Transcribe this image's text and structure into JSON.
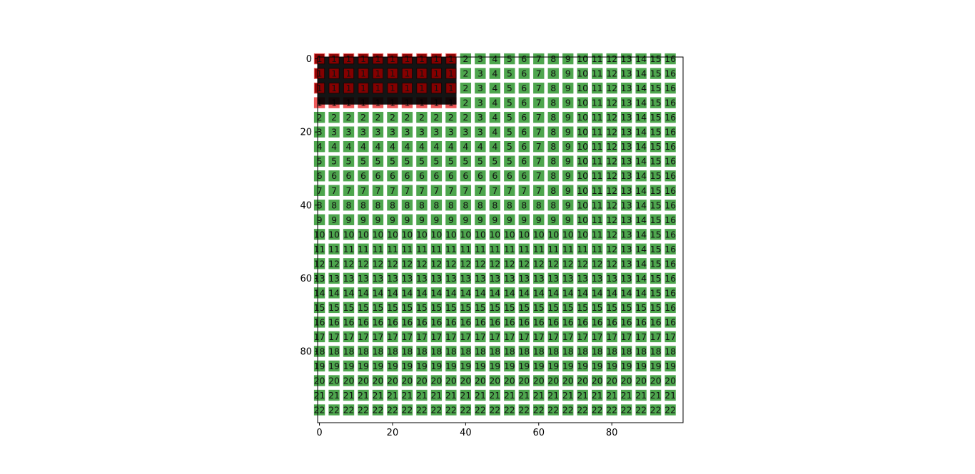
{
  "chart_data": {
    "type": "heatmap",
    "title": "",
    "xlabel": "",
    "ylabel": "",
    "xlim": [
      -0.5,
      99.5
    ],
    "ylim": [
      99.5,
      -0.5
    ],
    "x_ticks": [
      0,
      20,
      40,
      60,
      80
    ],
    "y_ticks": [
      0,
      20,
      40,
      60,
      80
    ],
    "grid": false,
    "cell_step": 4,
    "columns": 25,
    "rows": 25,
    "colors": {
      "normal": "#4ea64e",
      "highlight": "#ee5a5a",
      "overlay": "#000000",
      "overlay_text": "#8b0000"
    },
    "value_rule": "value = max(1, ceil(row_index / 4), ceil(col_index / 4)) for cells along a 4-unit grid",
    "highlighted_region": {
      "rows": [
        0,
        3
      ],
      "cols": [
        0,
        9
      ],
      "value": 1
    },
    "overlay_region": {
      "x_range": [
        -0.5,
        37.5
      ],
      "y_range": [
        -0.5,
        12.5
      ],
      "color": "#000000"
    }
  }
}
